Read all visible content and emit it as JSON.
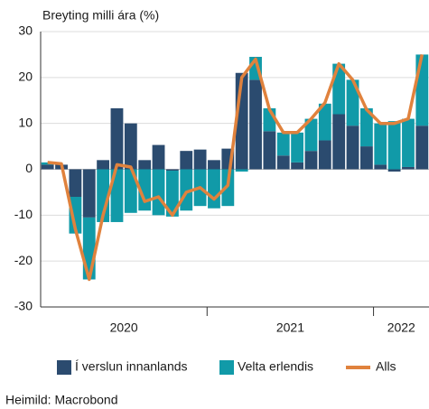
{
  "chart_data": {
    "type": "bar_line",
    "title": "Breyting milli ára (%)",
    "source": "Heimild: Macrobond",
    "categories": [
      null,
      null,
      null,
      null,
      null,
      null,
      null,
      null,
      null,
      null,
      null,
      null,
      null,
      null,
      null,
      null,
      null,
      null,
      null,
      null,
      null,
      null,
      null,
      null,
      null,
      null,
      null,
      null
    ],
    "x_groups": [
      {
        "label": "2020",
        "count": 12
      },
      {
        "label": "2021",
        "count": 12
      },
      {
        "label": "2022",
        "count": 4
      }
    ],
    "series": [
      {
        "name": "Í verslun innanlands",
        "type": "bar",
        "color": "#2b4b6f",
        "values": [
          1,
          1,
          -6,
          -10.5,
          2,
          13.3,
          10,
          2,
          5.3,
          -0.3,
          4,
          4.3,
          2,
          4.5,
          21,
          19.5,
          8.3,
          3,
          1.5,
          4,
          6.3,
          12,
          9.5,
          5,
          1,
          -0.5,
          0.5,
          9.5
        ]
      },
      {
        "name": "Velta erlendis",
        "type": "bar",
        "color": "#119aa8",
        "values": [
          0.5,
          0,
          -8,
          -13.5,
          -11.5,
          -11.5,
          -9.5,
          -9,
          -10,
          -10,
          -9,
          -8,
          -8.5,
          -8,
          -0.5,
          5,
          5,
          5,
          6.5,
          7,
          8,
          11,
          10,
          8.3,
          9,
          10.5,
          10.5,
          15.5
        ]
      },
      {
        "name": "Alls",
        "type": "line",
        "color": "#e0823d",
        "values": [
          1.5,
          1.2,
          -13,
          -24,
          -10,
          1,
          0.5,
          -7,
          -6,
          -10,
          -5,
          -4,
          -6.5,
          -3.5,
          20,
          24,
          13,
          8,
          8,
          11,
          14.5,
          23,
          19.5,
          13,
          10,
          10,
          11,
          25
        ]
      }
    ],
    "ylim": [
      -30,
      30
    ],
    "yticks": [
      -30,
      -20,
      -10,
      0,
      10,
      20,
      30
    ],
    "grid": true
  }
}
